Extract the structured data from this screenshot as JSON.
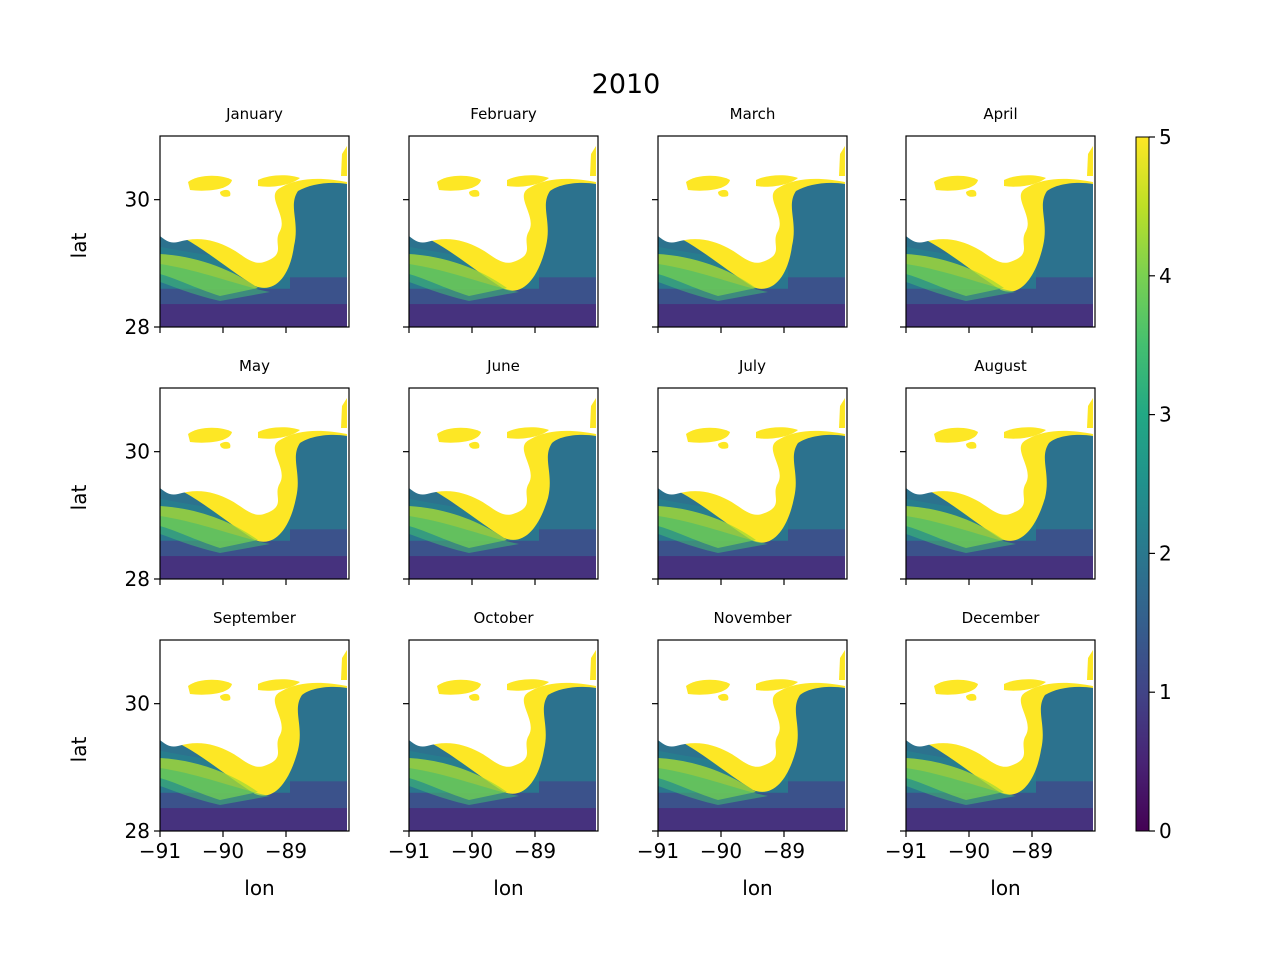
{
  "chart_data": {
    "type": "heatmap",
    "title": "2010",
    "panels": [
      {
        "title": "January"
      },
      {
        "title": "February"
      },
      {
        "title": "March"
      },
      {
        "title": "April"
      },
      {
        "title": "May"
      },
      {
        "title": "June"
      },
      {
        "title": "July"
      },
      {
        "title": "August"
      },
      {
        "title": "September"
      },
      {
        "title": "October"
      },
      {
        "title": "November"
      },
      {
        "title": "December"
      }
    ],
    "xlabel": "lon",
    "ylabel": "lat",
    "xlim": [
      -91,
      -88
    ],
    "ylim": [
      28,
      31
    ],
    "xticks": [
      -91,
      -90,
      -89
    ],
    "xtick_labels": [
      "−91",
      "−90",
      "−89"
    ],
    "yticks": [
      28,
      30
    ],
    "ytick_labels": [
      "28",
      "30"
    ],
    "colorbar": {
      "range": [
        0,
        5
      ],
      "ticks": [
        0,
        1,
        2,
        3,
        4,
        5
      ],
      "tick_labels": [
        "0",
        "1",
        "2",
        "3",
        "4",
        "5"
      ],
      "colormap": "viridis"
    },
    "grid": false,
    "legend": "colorbar-right"
  }
}
